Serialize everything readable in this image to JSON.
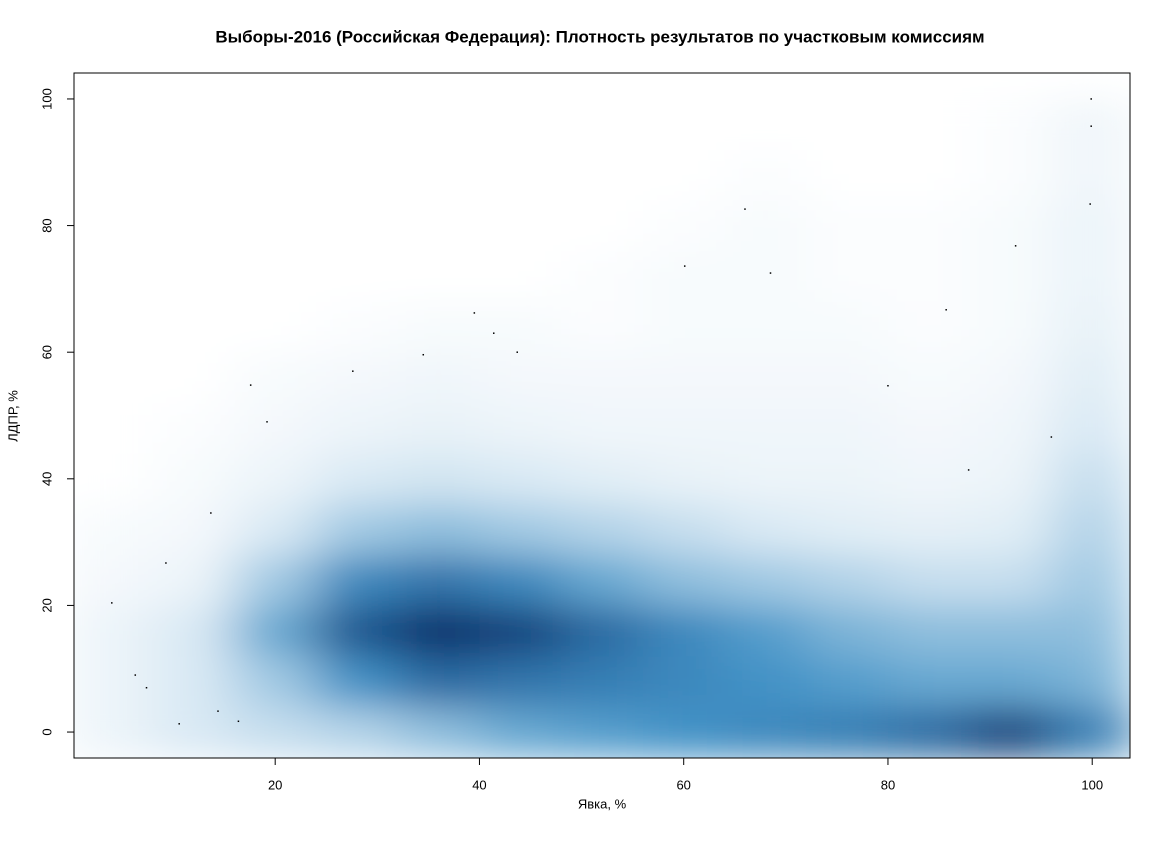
{
  "chart_data": {
    "type": "smoothscatter",
    "title": "Выборы-2016 (Российская Федерация): Плотность результатов по участковым комиссиям",
    "x_label": "Явка, %",
    "y_label": "ЛДПР, %",
    "xlim": [
      0.3,
      103.7
    ],
    "ylim": [
      -4.1,
      104.1
    ],
    "xticks": [
      20,
      40,
      60,
      80,
      100
    ],
    "yticks": [
      0,
      20,
      40,
      60,
      80,
      100
    ],
    "color": "#08306b",
    "density": {
      "x": [
        4,
        12,
        20,
        28,
        36,
        44,
        52,
        60,
        68,
        76,
        84,
        92,
        100
      ],
      "y": [
        0,
        8,
        16,
        24,
        32,
        40,
        48,
        56,
        64,
        72,
        80,
        88,
        96
      ],
      "z": [
        [
          0.05,
          0.1,
          0.15,
          0.2,
          0.3,
          0.4,
          0.45,
          0.5,
          0.55,
          0.6,
          0.7,
          0.9,
          0.6
        ],
        [
          0.05,
          0.1,
          0.25,
          0.5,
          0.7,
          0.65,
          0.6,
          0.55,
          0.5,
          0.45,
          0.4,
          0.4,
          0.35
        ],
        [
          0.05,
          0.1,
          0.4,
          0.8,
          1.0,
          0.9,
          0.7,
          0.55,
          0.45,
          0.35,
          0.3,
          0.3,
          0.3
        ],
        [
          0.03,
          0.05,
          0.25,
          0.55,
          0.65,
          0.55,
          0.4,
          0.3,
          0.25,
          0.2,
          0.15,
          0.15,
          0.25
        ],
        [
          0.02,
          0.03,
          0.1,
          0.25,
          0.3,
          0.25,
          0.2,
          0.15,
          0.1,
          0.08,
          0.07,
          0.08,
          0.2
        ],
        [
          0,
          0.02,
          0.05,
          0.1,
          0.12,
          0.1,
          0.08,
          0.06,
          0.05,
          0.05,
          0.04,
          0.05,
          0.15
        ],
        [
          0,
          0.01,
          0.03,
          0.05,
          0.06,
          0.05,
          0.04,
          0.04,
          0.04,
          0.04,
          0.03,
          0.04,
          0.1
        ],
        [
          0,
          0,
          0.02,
          0.03,
          0.04,
          0.03,
          0.03,
          0.03,
          0.03,
          0.03,
          0.02,
          0.03,
          0.08
        ],
        [
          0,
          0,
          0,
          0.01,
          0.02,
          0.02,
          0.01,
          0.02,
          0.02,
          0.02,
          0.01,
          0.02,
          0.06
        ],
        [
          0,
          0,
          0,
          0,
          0,
          0,
          0.01,
          0.02,
          0.02,
          0.01,
          0.01,
          0.02,
          0.05
        ],
        [
          0,
          0,
          0,
          0,
          0,
          0,
          0,
          0.01,
          0.02,
          0.01,
          0.01,
          0.02,
          0.05
        ],
        [
          0,
          0,
          0,
          0,
          0,
          0,
          0,
          0,
          0.01,
          0,
          0,
          0.01,
          0.04
        ],
        [
          0,
          0,
          0,
          0,
          0,
          0,
          0,
          0,
          0,
          0,
          0,
          0.01,
          0.04
        ]
      ]
    },
    "points": {
      "x": [
        4.0,
        9.3,
        13.7,
        19.2,
        17.6,
        27.6,
        34.5,
        39.5,
        41.4,
        43.7,
        60.1,
        66.0,
        68.5,
        85.7,
        92.5,
        99.9,
        99.9,
        99.8,
        87.9,
        6.3,
        7.4,
        10.6,
        16.4,
        14.4,
        80.0,
        96.0
      ],
      "y": [
        20.4,
        26.7,
        34.6,
        49.0,
        54.8,
        57.0,
        59.6,
        66.2,
        63.0,
        60.0,
        73.6,
        82.6,
        72.5,
        66.7,
        76.8,
        95.7,
        100,
        83.4,
        41.4,
        9.0,
        7.0,
        1.3,
        1.7,
        3.3,
        54.7,
        46.6
      ]
    }
  }
}
